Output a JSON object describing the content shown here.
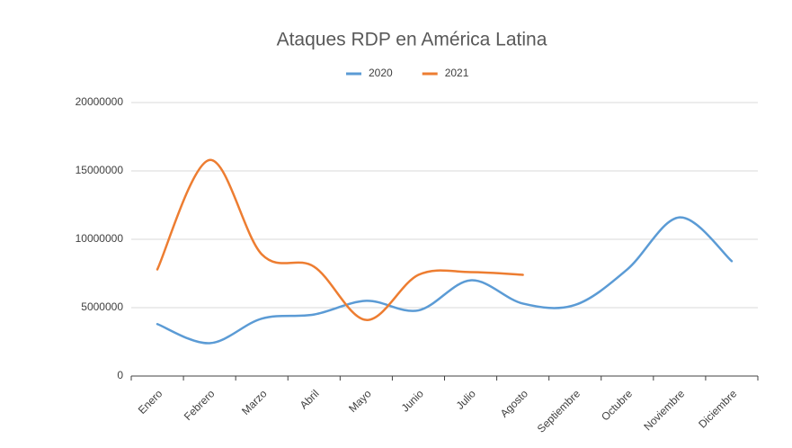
{
  "chart_data": {
    "type": "line",
    "title": "Ataques RDP en América Latina",
    "categories": [
      "Enero",
      "Febrero",
      "Marzo",
      "Abril",
      "Mayo",
      "Junio",
      "Julio",
      "Agosto",
      "Septiembre",
      "Octubre",
      "Noviembre",
      "Diciembre"
    ],
    "series": [
      {
        "name": "2020",
        "color": "#5b9bd5",
        "values": [
          3800000,
          2400000,
          4200000,
          4500000,
          5500000,
          4800000,
          7000000,
          5300000,
          5200000,
          7800000,
          11600000,
          8400000
        ]
      },
      {
        "name": "2021",
        "color": "#ed7d31",
        "values": [
          7800000,
          15800000,
          8900000,
          8000000,
          4100000,
          7400000,
          7600000,
          7400000,
          null,
          null,
          null,
          null
        ]
      }
    ],
    "ylim": [
      0,
      20000000
    ],
    "yticks": [
      0,
      5000000,
      10000000,
      15000000,
      20000000
    ],
    "grid": true,
    "legend": "top"
  }
}
